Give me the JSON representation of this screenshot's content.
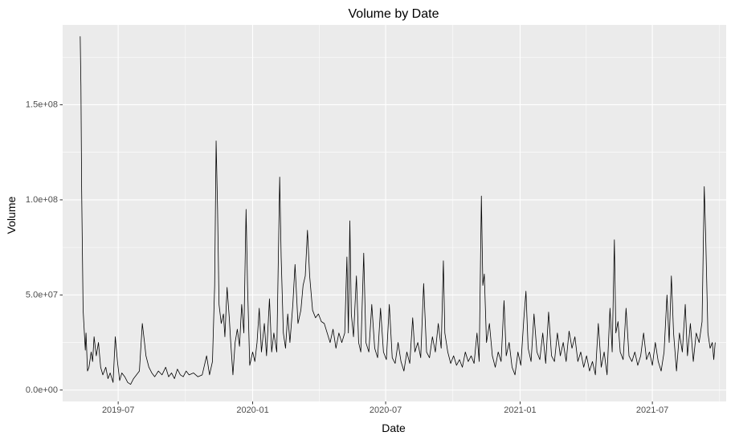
{
  "chart_data": {
    "type": "line",
    "title": "Volume by Date",
    "xlabel": "Date",
    "ylabel": "Volume",
    "x_axis": {
      "type": "date",
      "range": [
        "2019-04-16",
        "2021-10-10"
      ],
      "ticks": [
        {
          "value": "2019-07-01",
          "label": "2019-07"
        },
        {
          "value": "2020-01-01",
          "label": "2020-01"
        },
        {
          "value": "2020-07-01",
          "label": "2020-07"
        },
        {
          "value": "2021-01-01",
          "label": "2021-01"
        },
        {
          "value": "2021-07-01",
          "label": "2021-07"
        }
      ]
    },
    "y_axis": {
      "range": [
        -6000000,
        192000000
      ],
      "ticks": [
        {
          "value": 0,
          "label": "0.0e+00"
        },
        {
          "value": 50000000,
          "label": "5.0e+07"
        },
        {
          "value": 100000000,
          "label": "1.0e+08"
        },
        {
          "value": 150000000,
          "label": "1.5e+08"
        }
      ]
    },
    "grid": true,
    "series": [
      {
        "points": [
          [
            "2019-05-10",
            186000000
          ],
          [
            "2019-05-11",
            160000000
          ],
          [
            "2019-05-12",
            105000000
          ],
          [
            "2019-05-14",
            42000000
          ],
          [
            "2019-05-15",
            35000000
          ],
          [
            "2019-05-17",
            21000000
          ],
          [
            "2019-05-18",
            30000000
          ],
          [
            "2019-05-20",
            10000000
          ],
          [
            "2019-05-22",
            12000000
          ],
          [
            "2019-05-25",
            20000000
          ],
          [
            "2019-05-27",
            15000000
          ],
          [
            "2019-05-29",
            28000000
          ],
          [
            "2019-06-01",
            18000000
          ],
          [
            "2019-06-04",
            25000000
          ],
          [
            "2019-06-07",
            12000000
          ],
          [
            "2019-06-10",
            8000000
          ],
          [
            "2019-06-14",
            12000000
          ],
          [
            "2019-06-17",
            6000000
          ],
          [
            "2019-06-20",
            9000000
          ],
          [
            "2019-06-24",
            4000000
          ],
          [
            "2019-06-27",
            28000000
          ],
          [
            "2019-06-30",
            15000000
          ],
          [
            "2019-07-03",
            5000000
          ],
          [
            "2019-07-06",
            9000000
          ],
          [
            "2019-07-10",
            7000000
          ],
          [
            "2019-07-14",
            4000000
          ],
          [
            "2019-07-18",
            3000000
          ],
          [
            "2019-07-22",
            6000000
          ],
          [
            "2019-07-26",
            8000000
          ],
          [
            "2019-07-30",
            10000000
          ],
          [
            "2019-08-03",
            35000000
          ],
          [
            "2019-08-06",
            25000000
          ],
          [
            "2019-08-08",
            18000000
          ],
          [
            "2019-08-12",
            12000000
          ],
          [
            "2019-08-16",
            9000000
          ],
          [
            "2019-08-20",
            7000000
          ],
          [
            "2019-08-25",
            10000000
          ],
          [
            "2019-08-30",
            8000000
          ],
          [
            "2019-09-04",
            12000000
          ],
          [
            "2019-09-08",
            7000000
          ],
          [
            "2019-09-12",
            9000000
          ],
          [
            "2019-09-16",
            6000000
          ],
          [
            "2019-09-20",
            11000000
          ],
          [
            "2019-09-24",
            8000000
          ],
          [
            "2019-09-28",
            7000000
          ],
          [
            "2019-10-02",
            10000000
          ],
          [
            "2019-10-06",
            8000000
          ],
          [
            "2019-10-12",
            9000000
          ],
          [
            "2019-10-18",
            7000000
          ],
          [
            "2019-10-24",
            8000000
          ],
          [
            "2019-10-30",
            18000000
          ],
          [
            "2019-11-03",
            8000000
          ],
          [
            "2019-11-07",
            15000000
          ],
          [
            "2019-11-10",
            55000000
          ],
          [
            "2019-11-12",
            131000000
          ],
          [
            "2019-11-14",
            95000000
          ],
          [
            "2019-11-16",
            45000000
          ],
          [
            "2019-11-19",
            35000000
          ],
          [
            "2019-11-22",
            40000000
          ],
          [
            "2019-11-24",
            28000000
          ],
          [
            "2019-11-27",
            54000000
          ],
          [
            "2019-11-30",
            38000000
          ],
          [
            "2019-12-02",
            25000000
          ],
          [
            "2019-12-05",
            8000000
          ],
          [
            "2019-12-08",
            25000000
          ],
          [
            "2019-12-11",
            32000000
          ],
          [
            "2019-12-14",
            23000000
          ],
          [
            "2019-12-17",
            45000000
          ],
          [
            "2019-12-20",
            30000000
          ],
          [
            "2019-12-23",
            95000000
          ],
          [
            "2019-12-25",
            55000000
          ],
          [
            "2019-12-28",
            13000000
          ],
          [
            "2020-01-01",
            20000000
          ],
          [
            "2020-01-04",
            15000000
          ],
          [
            "2020-01-07",
            25000000
          ],
          [
            "2020-01-10",
            43000000
          ],
          [
            "2020-01-13",
            20000000
          ],
          [
            "2020-01-17",
            35000000
          ],
          [
            "2020-01-20",
            18000000
          ],
          [
            "2020-01-24",
            48000000
          ],
          [
            "2020-01-27",
            20000000
          ],
          [
            "2020-01-30",
            30000000
          ],
          [
            "2020-02-03",
            20000000
          ],
          [
            "2020-02-07",
            112000000
          ],
          [
            "2020-02-09",
            70000000
          ],
          [
            "2020-02-12",
            30000000
          ],
          [
            "2020-02-15",
            22000000
          ],
          [
            "2020-02-18",
            40000000
          ],
          [
            "2020-02-21",
            25000000
          ],
          [
            "2020-02-25",
            45000000
          ],
          [
            "2020-02-28",
            66000000
          ],
          [
            "2020-03-03",
            35000000
          ],
          [
            "2020-03-07",
            42000000
          ],
          [
            "2020-03-10",
            55000000
          ],
          [
            "2020-03-13",
            60000000
          ],
          [
            "2020-03-16",
            84000000
          ],
          [
            "2020-03-19",
            60000000
          ],
          [
            "2020-03-23",
            42000000
          ],
          [
            "2020-03-27",
            38000000
          ],
          [
            "2020-03-31",
            40000000
          ],
          [
            "2020-04-04",
            36000000
          ],
          [
            "2020-04-08",
            35000000
          ],
          [
            "2020-04-12",
            30000000
          ],
          [
            "2020-04-16",
            25000000
          ],
          [
            "2020-04-20",
            32000000
          ],
          [
            "2020-04-24",
            22000000
          ],
          [
            "2020-04-28",
            30000000
          ],
          [
            "2020-05-02",
            25000000
          ],
          [
            "2020-05-06",
            30000000
          ],
          [
            "2020-05-09",
            70000000
          ],
          [
            "2020-05-11",
            30000000
          ],
          [
            "2020-05-13",
            89000000
          ],
          [
            "2020-05-15",
            40000000
          ],
          [
            "2020-05-18",
            28000000
          ],
          [
            "2020-05-22",
            60000000
          ],
          [
            "2020-05-25",
            25000000
          ],
          [
            "2020-05-28",
            20000000
          ],
          [
            "2020-06-01",
            72000000
          ],
          [
            "2020-06-04",
            25000000
          ],
          [
            "2020-06-08",
            20000000
          ],
          [
            "2020-06-12",
            45000000
          ],
          [
            "2020-06-16",
            22000000
          ],
          [
            "2020-06-20",
            17000000
          ],
          [
            "2020-06-24",
            43000000
          ],
          [
            "2020-06-28",
            20000000
          ],
          [
            "2020-07-02",
            16000000
          ],
          [
            "2020-07-06",
            45000000
          ],
          [
            "2020-07-10",
            17000000
          ],
          [
            "2020-07-14",
            14000000
          ],
          [
            "2020-07-18",
            25000000
          ],
          [
            "2020-07-22",
            15000000
          ],
          [
            "2020-07-26",
            10000000
          ],
          [
            "2020-07-30",
            20000000
          ],
          [
            "2020-08-03",
            14000000
          ],
          [
            "2020-08-07",
            38000000
          ],
          [
            "2020-08-10",
            20000000
          ],
          [
            "2020-08-14",
            25000000
          ],
          [
            "2020-08-18",
            17000000
          ],
          [
            "2020-08-22",
            56000000
          ],
          [
            "2020-08-26",
            20000000
          ],
          [
            "2020-08-30",
            17000000
          ],
          [
            "2020-09-03",
            28000000
          ],
          [
            "2020-09-07",
            20000000
          ],
          [
            "2020-09-11",
            35000000
          ],
          [
            "2020-09-15",
            22000000
          ],
          [
            "2020-09-18",
            68000000
          ],
          [
            "2020-09-20",
            30000000
          ],
          [
            "2020-09-24",
            20000000
          ],
          [
            "2020-09-28",
            14000000
          ],
          [
            "2020-10-02",
            18000000
          ],
          [
            "2020-10-06",
            13000000
          ],
          [
            "2020-10-10",
            16000000
          ],
          [
            "2020-10-14",
            12000000
          ],
          [
            "2020-10-18",
            20000000
          ],
          [
            "2020-10-22",
            15000000
          ],
          [
            "2020-10-26",
            18000000
          ],
          [
            "2020-10-30",
            14000000
          ],
          [
            "2020-11-03",
            30000000
          ],
          [
            "2020-11-06",
            15000000
          ],
          [
            "2020-11-09",
            102000000
          ],
          [
            "2020-11-11",
            55000000
          ],
          [
            "2020-11-13",
            61000000
          ],
          [
            "2020-11-16",
            25000000
          ],
          [
            "2020-11-20",
            35000000
          ],
          [
            "2020-11-24",
            18000000
          ],
          [
            "2020-11-28",
            12000000
          ],
          [
            "2020-12-02",
            20000000
          ],
          [
            "2020-12-06",
            15000000
          ],
          [
            "2020-12-10",
            47000000
          ],
          [
            "2020-12-13",
            18000000
          ],
          [
            "2020-12-17",
            25000000
          ],
          [
            "2020-12-21",
            12000000
          ],
          [
            "2020-12-25",
            8000000
          ],
          [
            "2020-12-29",
            20000000
          ],
          [
            "2021-01-02",
            13000000
          ],
          [
            "2021-01-06",
            37000000
          ],
          [
            "2021-01-09",
            52000000
          ],
          [
            "2021-01-12",
            22000000
          ],
          [
            "2021-01-16",
            15000000
          ],
          [
            "2021-01-20",
            40000000
          ],
          [
            "2021-01-24",
            20000000
          ],
          [
            "2021-01-28",
            16000000
          ],
          [
            "2021-02-01",
            30000000
          ],
          [
            "2021-02-05",
            14000000
          ],
          [
            "2021-02-09",
            41000000
          ],
          [
            "2021-02-13",
            18000000
          ],
          [
            "2021-02-17",
            15000000
          ],
          [
            "2021-02-21",
            30000000
          ],
          [
            "2021-02-25",
            18000000
          ],
          [
            "2021-03-01",
            25000000
          ],
          [
            "2021-03-05",
            15000000
          ],
          [
            "2021-03-09",
            31000000
          ],
          [
            "2021-03-13",
            22000000
          ],
          [
            "2021-03-17",
            28000000
          ],
          [
            "2021-03-21",
            15000000
          ],
          [
            "2021-03-25",
            20000000
          ],
          [
            "2021-03-29",
            12000000
          ],
          [
            "2021-04-02",
            18000000
          ],
          [
            "2021-04-06",
            10000000
          ],
          [
            "2021-04-10",
            15000000
          ],
          [
            "2021-04-14",
            8000000
          ],
          [
            "2021-04-18",
            35000000
          ],
          [
            "2021-04-22",
            12000000
          ],
          [
            "2021-04-26",
            20000000
          ],
          [
            "2021-04-30",
            8000000
          ],
          [
            "2021-05-04",
            43000000
          ],
          [
            "2021-05-07",
            20000000
          ],
          [
            "2021-05-10",
            79000000
          ],
          [
            "2021-05-12",
            30000000
          ],
          [
            "2021-05-15",
            36000000
          ],
          [
            "2021-05-18",
            20000000
          ],
          [
            "2021-05-22",
            16000000
          ],
          [
            "2021-05-26",
            43000000
          ],
          [
            "2021-05-30",
            18000000
          ],
          [
            "2021-06-03",
            15000000
          ],
          [
            "2021-06-07",
            20000000
          ],
          [
            "2021-06-11",
            13000000
          ],
          [
            "2021-06-15",
            18000000
          ],
          [
            "2021-06-19",
            30000000
          ],
          [
            "2021-06-23",
            16000000
          ],
          [
            "2021-06-27",
            20000000
          ],
          [
            "2021-07-01",
            13000000
          ],
          [
            "2021-07-05",
            25000000
          ],
          [
            "2021-07-09",
            15000000
          ],
          [
            "2021-07-13",
            10000000
          ],
          [
            "2021-07-17",
            20000000
          ],
          [
            "2021-07-21",
            50000000
          ],
          [
            "2021-07-24",
            25000000
          ],
          [
            "2021-07-27",
            60000000
          ],
          [
            "2021-07-30",
            30000000
          ],
          [
            "2021-08-03",
            10000000
          ],
          [
            "2021-08-07",
            30000000
          ],
          [
            "2021-08-11",
            20000000
          ],
          [
            "2021-08-15",
            45000000
          ],
          [
            "2021-08-18",
            18000000
          ],
          [
            "2021-08-22",
            35000000
          ],
          [
            "2021-08-26",
            15000000
          ],
          [
            "2021-08-30",
            30000000
          ],
          [
            "2021-09-03",
            25000000
          ],
          [
            "2021-09-07",
            36000000
          ],
          [
            "2021-09-10",
            107000000
          ],
          [
            "2021-09-12",
            80000000
          ],
          [
            "2021-09-15",
            30000000
          ],
          [
            "2021-09-18",
            22000000
          ],
          [
            "2021-09-21",
            25000000
          ],
          [
            "2021-09-23",
            16000000
          ],
          [
            "2021-09-25",
            25000000
          ]
        ]
      }
    ]
  }
}
